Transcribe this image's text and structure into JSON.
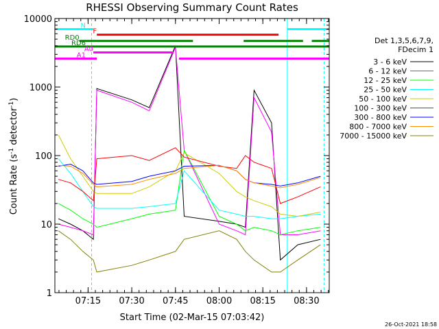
{
  "chart_data": {
    "type": "line",
    "title": "RHESSI Observing Summary Count Rates",
    "xlabel": "Start Time (02-Mar-15 07:03:42)",
    "ylabel": "Count Rate (s^-1 detector^-1)",
    "ylabel_main": "Count Rate (s",
    "ylabel_sup1": "-1",
    "ylabel_mid": " detector",
    "ylabel_sup2": "-1",
    "ylabel_end": ")",
    "yscale": "log",
    "xlim": [
      7.06,
      8.63
    ],
    "ylim": [
      1,
      10000
    ],
    "x_unit": "hours (UT)",
    "x_ticks": [
      {
        "value": 7.25,
        "label": "07:15"
      },
      {
        "value": 7.5,
        "label": "07:30"
      },
      {
        "value": 7.75,
        "label": "07:45"
      },
      {
        "value": 8.0,
        "label": "08:00"
      },
      {
        "value": 8.25,
        "label": "08:15"
      },
      {
        "value": 8.5,
        "label": "08:30"
      }
    ],
    "y_ticks": [
      {
        "value": 1,
        "label": "1"
      },
      {
        "value": 10,
        "label": "10"
      },
      {
        "value": 100,
        "label": "100"
      },
      {
        "value": 1000,
        "label": "1000"
      },
      {
        "value": 10000,
        "label": "10000"
      }
    ],
    "legend": {
      "placement": "right",
      "header1": "Det 1,3,5,6,7,9,",
      "header2": "FDecim 1"
    },
    "series": [
      {
        "name": "3 - 6 keV",
        "color": "#000000",
        "x": [
          7.08,
          7.15,
          7.22,
          7.28,
          7.3,
          7.5,
          7.6,
          7.75,
          7.8,
          8.0,
          8.1,
          8.15,
          8.2,
          8.3,
          8.35,
          8.45,
          8.58
        ],
        "y": [
          12,
          10,
          8,
          6,
          950,
          650,
          500,
          4000,
          13,
          11,
          10,
          9,
          900,
          300,
          3,
          5,
          6
        ]
      },
      {
        "name": "6 - 12 keV",
        "color": "#ff00ff",
        "x": [
          7.08,
          7.15,
          7.22,
          7.28,
          7.3,
          7.5,
          7.6,
          7.75,
          7.8,
          8.0,
          8.1,
          8.15,
          8.2,
          8.3,
          8.35,
          8.45,
          8.58
        ],
        "y": [
          10,
          9,
          8,
          7,
          900,
          600,
          450,
          3800,
          120,
          10,
          8,
          7,
          700,
          220,
          7,
          7,
          8
        ]
      },
      {
        "name": "12 - 25 keV",
        "color": "#00ff00",
        "x": [
          7.08,
          7.15,
          7.22,
          7.28,
          7.3,
          7.5,
          7.6,
          7.75,
          7.8,
          8.0,
          8.1,
          8.15,
          8.2,
          8.3,
          8.35,
          8.45,
          8.58
        ],
        "y": [
          20,
          16,
          12,
          10,
          9,
          12,
          14,
          16,
          120,
          13,
          10,
          8,
          9,
          8,
          7,
          8,
          9
        ]
      },
      {
        "name": "25 - 50 keV",
        "color": "#00ffff",
        "x": [
          7.08,
          7.15,
          7.22,
          7.28,
          7.3,
          7.5,
          7.6,
          7.75,
          7.8,
          8.0,
          8.1,
          8.15,
          8.2,
          8.3,
          8.35,
          8.45,
          8.58
        ],
        "y": [
          90,
          55,
          30,
          18,
          17,
          17,
          18,
          20,
          60,
          16,
          14,
          13,
          13,
          12,
          12,
          13,
          14
        ]
      },
      {
        "name": "50 - 100 keV",
        "color": "#cccc00",
        "x": [
          7.08,
          7.15,
          7.22,
          7.28,
          7.3,
          7.5,
          7.6,
          7.75,
          7.8,
          8.0,
          8.1,
          8.15,
          8.2,
          8.3,
          8.35,
          8.45,
          8.58
        ],
        "y": [
          200,
          90,
          50,
          30,
          28,
          28,
          35,
          60,
          110,
          55,
          30,
          25,
          22,
          18,
          14,
          13,
          15
        ]
      },
      {
        "name": "100 - 300 keV",
        "color": "#ff0000",
        "x": [
          7.08,
          7.15,
          7.22,
          7.28,
          7.3,
          7.5,
          7.6,
          7.75,
          7.8,
          8.0,
          8.1,
          8.15,
          8.2,
          8.3,
          8.35,
          8.45,
          8.58
        ],
        "y": [
          45,
          40,
          30,
          22,
          90,
          100,
          85,
          130,
          95,
          70,
          65,
          100,
          80,
          65,
          20,
          25,
          35
        ]
      },
      {
        "name": "300 - 800 keV",
        "color": "#0000ff",
        "x": [
          7.08,
          7.15,
          7.22,
          7.28,
          7.3,
          7.5,
          7.6,
          7.75,
          7.8,
          8.0,
          8.1,
          8.15,
          8.2,
          8.3,
          8.35,
          8.45,
          8.58
        ],
        "y": [
          70,
          75,
          60,
          40,
          38,
          42,
          50,
          60,
          70,
          72,
          60,
          45,
          40,
          38,
          36,
          40,
          50
        ]
      },
      {
        "name": "800 - 7000 keV",
        "color": "#ff8c00",
        "x": [
          7.08,
          7.15,
          7.22,
          7.28,
          7.3,
          7.5,
          7.6,
          7.75,
          7.8,
          8.0,
          8.1,
          8.15,
          8.2,
          8.3,
          8.35,
          8.45,
          8.58
        ],
        "y": [
          72,
          70,
          55,
          38,
          35,
          38,
          45,
          55,
          65,
          72,
          60,
          45,
          40,
          36,
          34,
          38,
          48
        ]
      },
      {
        "name": "7000 - 15000 keV",
        "color": "#808000",
        "x": [
          7.08,
          7.15,
          7.22,
          7.28,
          7.3,
          7.5,
          7.6,
          7.75,
          7.8,
          8.0,
          8.1,
          8.15,
          8.2,
          8.3,
          8.35,
          8.45,
          8.58
        ],
        "y": [
          8,
          6,
          4,
          3,
          2,
          2.5,
          3,
          4,
          6,
          8,
          6,
          4,
          3,
          2,
          2,
          3,
          5
        ]
      }
    ],
    "flags": [
      {
        "name": "N",
        "color": "#00ffff",
        "y": 7000,
        "segments": [
          [
            7.06,
            7.28
          ],
          [
            8.39,
            8.63
          ]
        ]
      },
      {
        "name": "F",
        "color": "#ff0000",
        "y": 5800,
        "segments": [
          [
            7.3,
            8.34
          ]
        ]
      },
      {
        "name": "RD0",
        "color": "#008000",
        "y": 4700,
        "segments": [
          [
            7.2,
            7.85
          ],
          [
            8.14,
            8.48
          ],
          [
            8.53,
            8.63
          ]
        ]
      },
      {
        "name": "RD6",
        "color": "#008000",
        "y": 3900,
        "segments": [
          [
            7.06,
            8.63
          ]
        ]
      },
      {
        "name": "A0",
        "color": "#ff00ff",
        "y": 3200,
        "segments": [
          [
            7.28,
            7.74
          ]
        ]
      },
      {
        "name": "A1",
        "color": "#ff00ff",
        "y": 2600,
        "segments": [
          [
            7.06,
            7.3
          ],
          [
            7.77,
            8.63
          ]
        ]
      }
    ],
    "vertical_lines": [
      {
        "x": 7.06,
        "color": "#00ffff",
        "style": "solid"
      },
      {
        "x": 7.27,
        "color": "#00ffff",
        "style": "dashed"
      },
      {
        "x": 8.39,
        "color": "#00ffff",
        "style": "solid"
      },
      {
        "x": 8.6,
        "color": "#00ffff",
        "style": "dashed"
      }
    ],
    "timestamp": "26-Oct-2021 18:58"
  }
}
